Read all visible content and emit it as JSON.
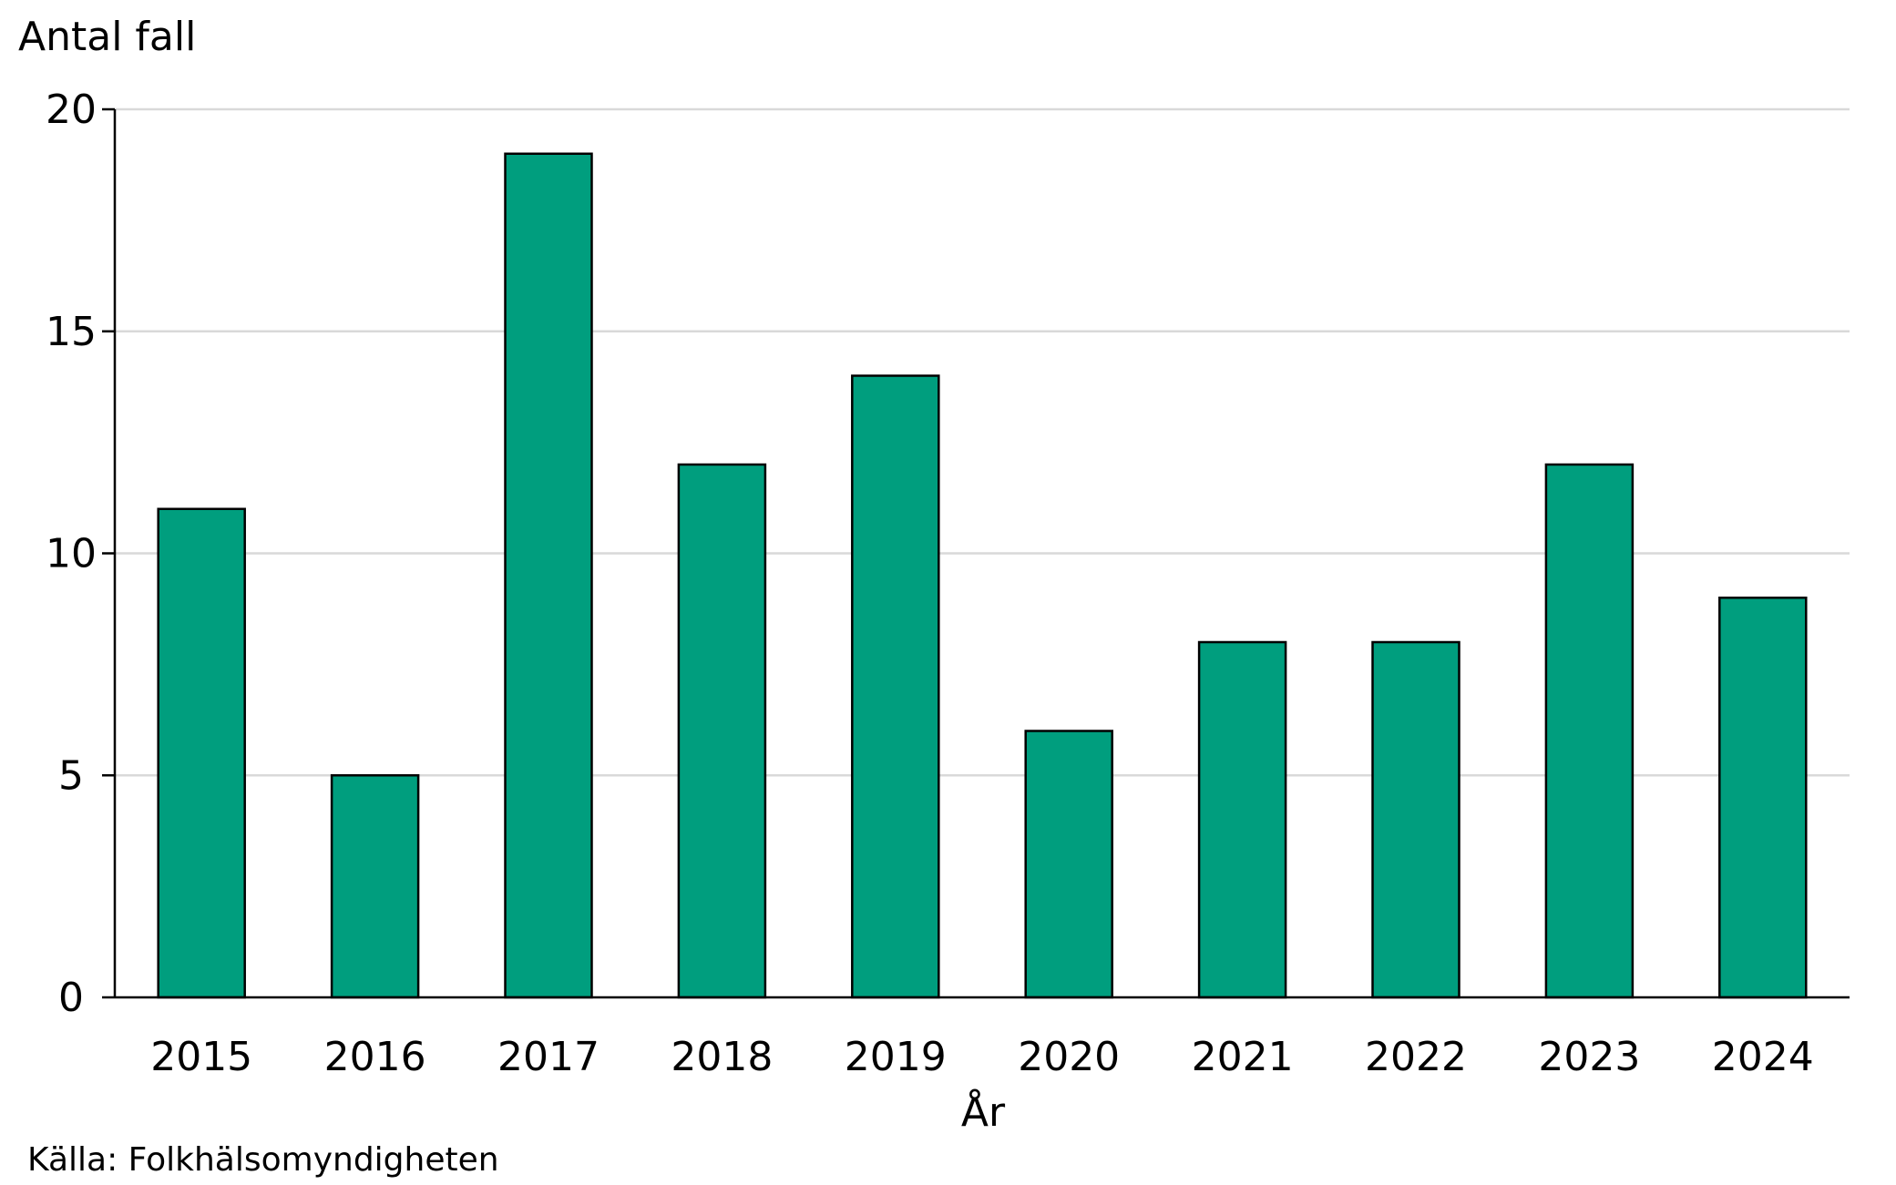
{
  "chart_data": {
    "type": "bar",
    "ylabel": "Antal fall",
    "xlabel": "År",
    "categories": [
      "2015",
      "2016",
      "2017",
      "2018",
      "2019",
      "2020",
      "2021",
      "2022",
      "2023",
      "2024"
    ],
    "values": [
      11,
      5,
      19,
      12,
      14,
      6,
      8,
      8,
      12,
      9
    ],
    "ylim": [
      0,
      20
    ],
    "yticks": [
      0,
      5,
      10,
      15,
      20
    ],
    "grid": true,
    "colors": {
      "bar": "#009E7E",
      "bar_edge": "#000000",
      "grid": "#D9D9D9"
    }
  },
  "source": "Källa: Folkhälsomyndigheten"
}
